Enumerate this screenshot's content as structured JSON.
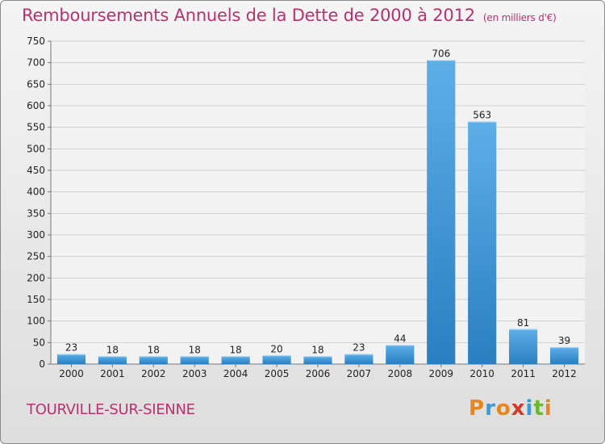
{
  "title": "Remboursements Annuels de la Dette de 2000 à 2012",
  "unit": "(en milliers d'€)",
  "commune": "TOURVILLE-SUR-SIENNE",
  "logo": "Proxiti",
  "colors": {
    "title": "#b5336e",
    "bar_light": "#5eaee8",
    "bar_dark": "#2a7fc0",
    "logo_letters": [
      "#e8861e",
      "#3a9ad8",
      "#e8861e",
      "#d23a2a",
      "#3a9ad8",
      "#6ab82e",
      "#e8861e"
    ]
  },
  "chart_data": {
    "type": "bar",
    "title": "Remboursements Annuels de la Dette de 2000 à 2012",
    "xlabel": "",
    "ylabel": "(en milliers d'€)",
    "categories": [
      "2000",
      "2001",
      "2002",
      "2003",
      "2004",
      "2005",
      "2006",
      "2007",
      "2008",
      "2009",
      "2010",
      "2011",
      "2012"
    ],
    "values": [
      23,
      18,
      18,
      18,
      18,
      20,
      18,
      23,
      44,
      706,
      563,
      81,
      39
    ],
    "ylim": [
      0,
      750
    ],
    "yticks": [
      0,
      50,
      100,
      150,
      200,
      250,
      300,
      350,
      400,
      450,
      500,
      550,
      600,
      650,
      700,
      750
    ],
    "grid": true
  }
}
